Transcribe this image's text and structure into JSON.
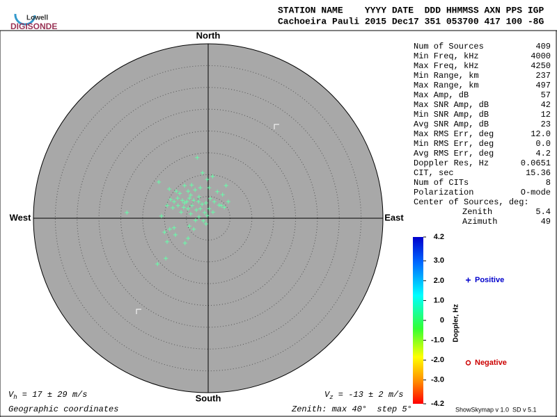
{
  "logo": {
    "line1": "Lowell",
    "line2": "DIGISONDE"
  },
  "header": {
    "columns": "STATION NAME    YYYY DATE  DDD HHMMSS AXN PPS IGP",
    "values": "Cachoeira Pauli 2015 Dec17 351 053700 417 100 -8G"
  },
  "stats": {
    "rows": [
      [
        "Num of Sources",
        "409"
      ],
      [
        "Min Freq, kHz",
        "4000"
      ],
      [
        "Max Freq, kHz",
        "4250"
      ],
      [
        "Min Range, km",
        "237"
      ],
      [
        "Max Range, km",
        "497"
      ],
      [
        "Max Amp, dB",
        "57"
      ],
      [
        "Max SNR Amp, dB",
        "42"
      ],
      [
        "Min SNR Amp, dB",
        "12"
      ],
      [
        "Avg SNR Amp, dB",
        "23"
      ],
      [
        "Max RMS Err, deg",
        "12.0"
      ],
      [
        "Min RMS Err, deg",
        "0.0"
      ],
      [
        "Avg RMS Err, deg",
        "4.2"
      ],
      [
        "Doppler Res, Hz",
        "0.0651"
      ],
      [
        "CIT, sec",
        "15.36"
      ],
      [
        "Num of CITs",
        "8"
      ],
      [
        "Polarization",
        "O-mode"
      ]
    ],
    "center": {
      "title": "Center of Sources, deg:",
      "rows": [
        [
          "Zenith",
          "5.4"
        ],
        [
          "Azimuth",
          "49"
        ]
      ]
    }
  },
  "footer": {
    "vh": {
      "symbol": "V",
      "sub": "h",
      "text": " = 17 ± 29 m/s"
    },
    "vz": {
      "symbol": "V",
      "sub": "z",
      "text": " = -13 ± 2 m/s"
    },
    "coords": "Geographic coordinates",
    "zenith": "Zenith: max 40°  step 5°",
    "version": "ShowSkymap v 1.0  SD v 5.1"
  },
  "chart_data": {
    "type": "scatter",
    "directions": {
      "north": "North",
      "south": "South",
      "east": "East",
      "west": "West"
    },
    "xlim": [
      -40,
      40
    ],
    "ylim": [
      -40,
      40
    ],
    "rlim": [
      0,
      40
    ],
    "rticks": [
      5,
      10,
      15,
      20,
      25,
      30,
      35
    ],
    "series": [
      {
        "name": "Positive",
        "color": "#0000cc",
        "marker_color": "#66ffaa",
        "x": [
          -2.5,
          -1.3,
          -11.3,
          1.0,
          -0.2,
          -5.4,
          -3.8,
          4.1,
          -8.9,
          -7.3,
          -6.5,
          -4.6,
          -3.0,
          -1.8,
          0.2,
          2.1,
          3.3,
          4.6,
          -8.6,
          -7.8,
          -7.0,
          -5.9,
          -4.9,
          -4.3,
          -3.3,
          -2.2,
          -1.4,
          -0.5,
          0.5,
          1.4,
          2.5,
          3.7,
          -9.4,
          -8.1,
          -6.9,
          -5.6,
          -4.6,
          -3.7,
          -2.7,
          -1.8,
          -0.8,
          0.2,
          1.1,
          3.0,
          -18.6,
          -10.7,
          -6.2,
          -4.0,
          -2.1,
          -1.1,
          -0.5,
          -8.8,
          -7.8,
          -10.0,
          -4.3,
          -3.3,
          -7.5,
          -4.6,
          -9.4,
          -5.3,
          -11.6,
          -9.7,
          -0.2,
          -2.9,
          -5.4,
          -4.0,
          -2.1
        ],
        "values": [
          13.9,
          10.4,
          8.3,
          9.6,
          8.9,
          7.5,
          7.6,
          7.5,
          6.7,
          6.2,
          5.7,
          6.2,
          6.5,
          7.0,
          7.0,
          6.1,
          5.4,
          3.8,
          4.3,
          3.8,
          4.6,
          4.1,
          3.8,
          4.6,
          4.1,
          3.8,
          3.2,
          3.5,
          4.5,
          3.8,
          3.0,
          2.5,
          2.9,
          2.4,
          2.9,
          2.5,
          2.2,
          2.9,
          1.9,
          2.2,
          1.3,
          2.2,
          1.4,
          2.9,
          1.3,
          0.5,
          1.4,
          1.0,
          0.3,
          -0.6,
          -1.3,
          -2.5,
          -2.2,
          -3.2,
          -1.8,
          -2.5,
          -3.8,
          -4.6,
          -5.4,
          -5.7,
          -10.5,
          -9.2,
          0.6,
          -0.5,
          3.5,
          5.3,
          4.9
        ]
      },
      {
        "name": "Negative",
        "color": "#cc0000",
        "marker_color": "#ff3300",
        "x": [],
        "values": []
      }
    ],
    "colorbar": {
      "label": "Doppler, Hz",
      "lim": [
        -4.2,
        4.2
      ],
      "ticks": [
        4.2,
        {
          "value": 3,
          "label": "3.0"
        },
        {
          "value": 2,
          "label": "2.0"
        },
        {
          "value": 1,
          "label": "1.0"
        },
        0,
        {
          "value": -1,
          "label": "-1.0"
        },
        {
          "value": -2,
          "label": "-2.0"
        },
        {
          "value": -3,
          "label": "-3.0"
        },
        -4.2
      ]
    }
  }
}
